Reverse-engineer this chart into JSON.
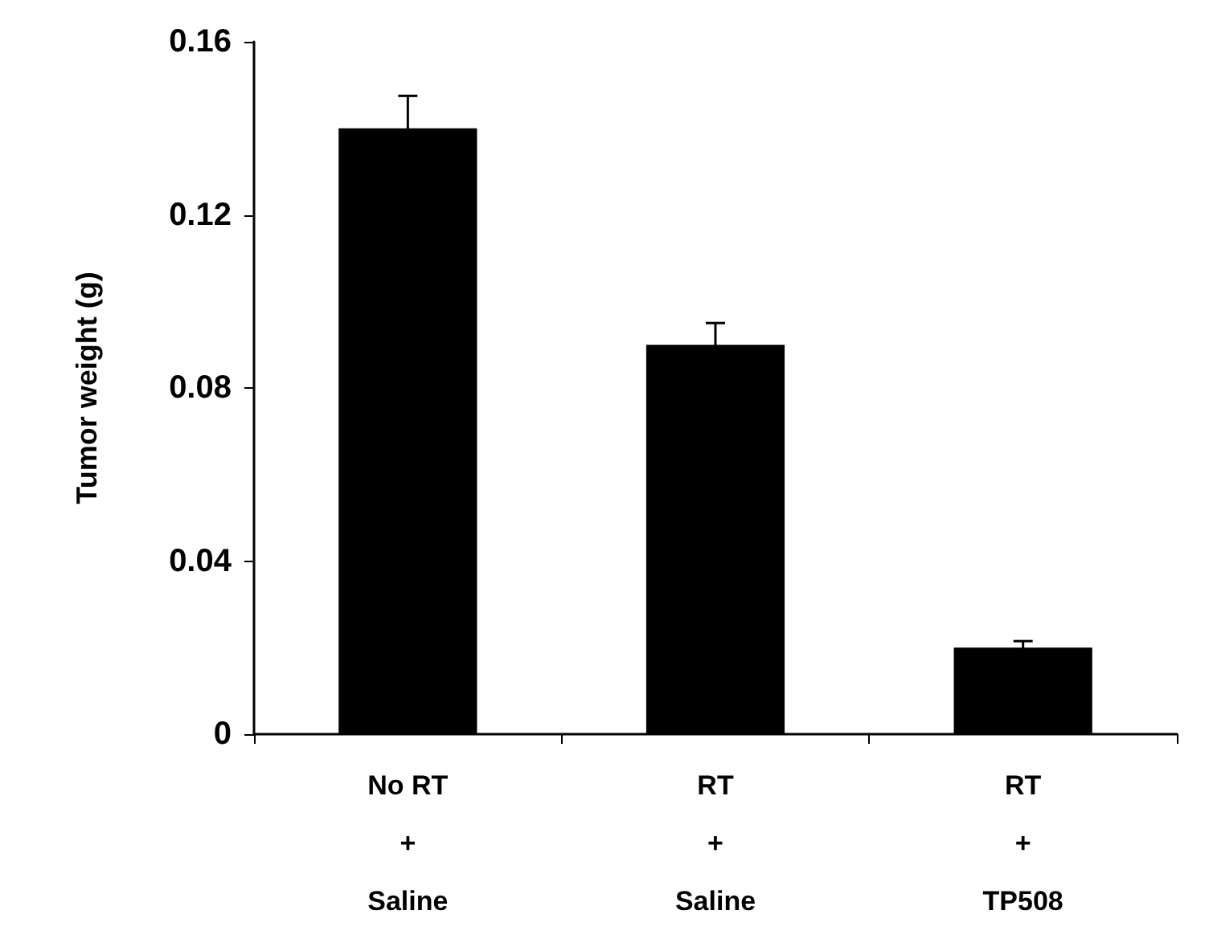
{
  "chart_data": {
    "type": "bar",
    "ylabel": "Tumor weight (g)",
    "categories": [
      "No RT\n+\nSaline",
      "RT\n+\nSaline",
      "RT\n+\nTP508"
    ],
    "values": [
      0.14,
      0.09,
      0.02
    ],
    "errors": [
      0.0075,
      0.005,
      0.0015
    ],
    "color": "#000000",
    "ylim": [
      0,
      0.16
    ],
    "yticks": [
      0,
      0.04,
      0.08,
      0.12,
      0.16
    ],
    "grid": false
  }
}
